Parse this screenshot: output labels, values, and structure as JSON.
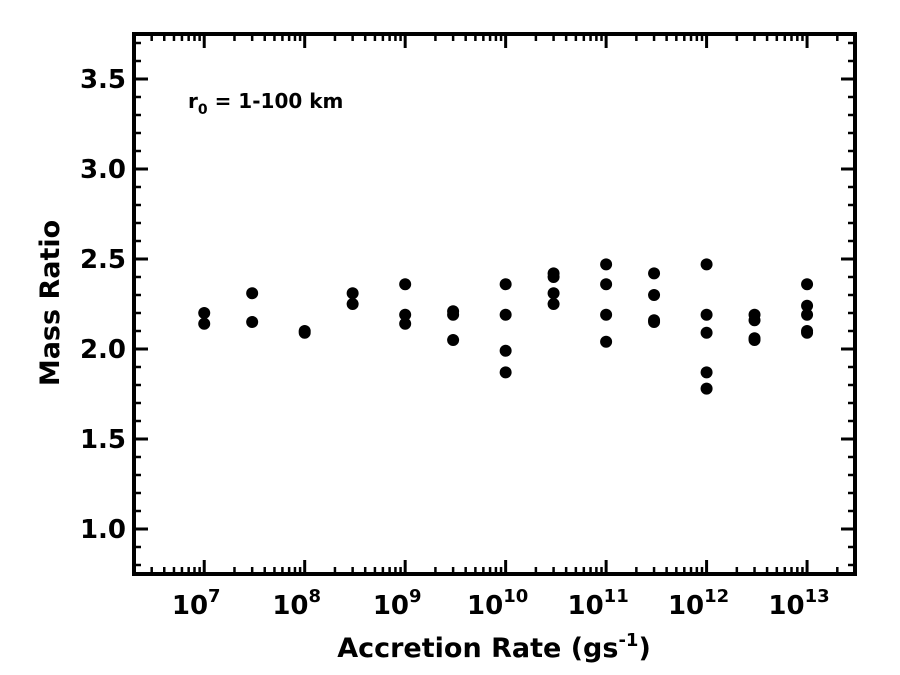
{
  "chart_data": {
    "type": "scatter",
    "xscale": "log",
    "xlim": [
      2000000,
      30000000000000
    ],
    "ylim": [
      0.75,
      3.75
    ],
    "grid": false,
    "xlabel": "Accretion Rate (gs",
    "xlabel_sup": "-1",
    "xlabel_end": ")",
    "ylabel": "Mass Ratio",
    "annotation": {
      "main": "r",
      "sub": "0",
      "rest": " = 1-100 km"
    },
    "x_ticks": [
      {
        "value": 10000000,
        "base": "10",
        "exp": "7"
      },
      {
        "value": 100000000,
        "base": "10",
        "exp": "8"
      },
      {
        "value": 1000000000,
        "base": "10",
        "exp": "9"
      },
      {
        "value": 10000000000,
        "base": "10",
        "exp": "10"
      },
      {
        "value": 100000000000,
        "base": "10",
        "exp": "11"
      },
      {
        "value": 1000000000000,
        "base": "10",
        "exp": "12"
      },
      {
        "value": 10000000000000,
        "base": "10",
        "exp": "13"
      }
    ],
    "y_ticks": [
      {
        "value": 1.0,
        "label": "1.0"
      },
      {
        "value": 1.5,
        "label": "1.5"
      },
      {
        "value": 2.0,
        "label": "2.0"
      },
      {
        "value": 2.5,
        "label": "2.5"
      },
      {
        "value": 3.0,
        "label": "3.0"
      },
      {
        "value": 3.5,
        "label": "3.5"
      }
    ],
    "marker_color": "#000000",
    "points": [
      {
        "x": 10000000,
        "y": 2.2
      },
      {
        "x": 10000000,
        "y": 2.14
      },
      {
        "x": 30000000,
        "y": 2.31
      },
      {
        "x": 30000000,
        "y": 2.15
      },
      {
        "x": 100000000,
        "y": 2.1
      },
      {
        "x": 100000000,
        "y": 2.09
      },
      {
        "x": 300000000,
        "y": 2.31
      },
      {
        "x": 300000000,
        "y": 2.25
      },
      {
        "x": 1000000000,
        "y": 2.36
      },
      {
        "x": 1000000000,
        "y": 2.19
      },
      {
        "x": 1000000000,
        "y": 2.14
      },
      {
        "x": 3000000000,
        "y": 2.21
      },
      {
        "x": 3000000000,
        "y": 2.19
      },
      {
        "x": 3000000000,
        "y": 2.05
      },
      {
        "x": 10000000000,
        "y": 2.36
      },
      {
        "x": 10000000000,
        "y": 2.19
      },
      {
        "x": 10000000000,
        "y": 1.99
      },
      {
        "x": 10000000000,
        "y": 1.87
      },
      {
        "x": 30000000000,
        "y": 2.42
      },
      {
        "x": 30000000000,
        "y": 2.4
      },
      {
        "x": 30000000000,
        "y": 2.31
      },
      {
        "x": 30000000000,
        "y": 2.25
      },
      {
        "x": 100000000000,
        "y": 2.47
      },
      {
        "x": 100000000000,
        "y": 2.36
      },
      {
        "x": 100000000000,
        "y": 2.19
      },
      {
        "x": 100000000000,
        "y": 2.04
      },
      {
        "x": 300000000000,
        "y": 2.42
      },
      {
        "x": 300000000000,
        "y": 2.3
      },
      {
        "x": 300000000000,
        "y": 2.16
      },
      {
        "x": 300000000000,
        "y": 2.15
      },
      {
        "x": 1000000000000,
        "y": 2.47
      },
      {
        "x": 1000000000000,
        "y": 2.19
      },
      {
        "x": 1000000000000,
        "y": 2.09
      },
      {
        "x": 1000000000000,
        "y": 1.87
      },
      {
        "x": 1000000000000,
        "y": 1.78
      },
      {
        "x": 3000000000000,
        "y": 2.19
      },
      {
        "x": 3000000000000,
        "y": 2.16
      },
      {
        "x": 3000000000000,
        "y": 2.06
      },
      {
        "x": 3000000000000,
        "y": 2.05
      },
      {
        "x": 10000000000000,
        "y": 2.36
      },
      {
        "x": 10000000000000,
        "y": 2.24
      },
      {
        "x": 10000000000000,
        "y": 2.19
      },
      {
        "x": 10000000000000,
        "y": 2.1
      },
      {
        "x": 10000000000000,
        "y": 2.09
      }
    ]
  }
}
